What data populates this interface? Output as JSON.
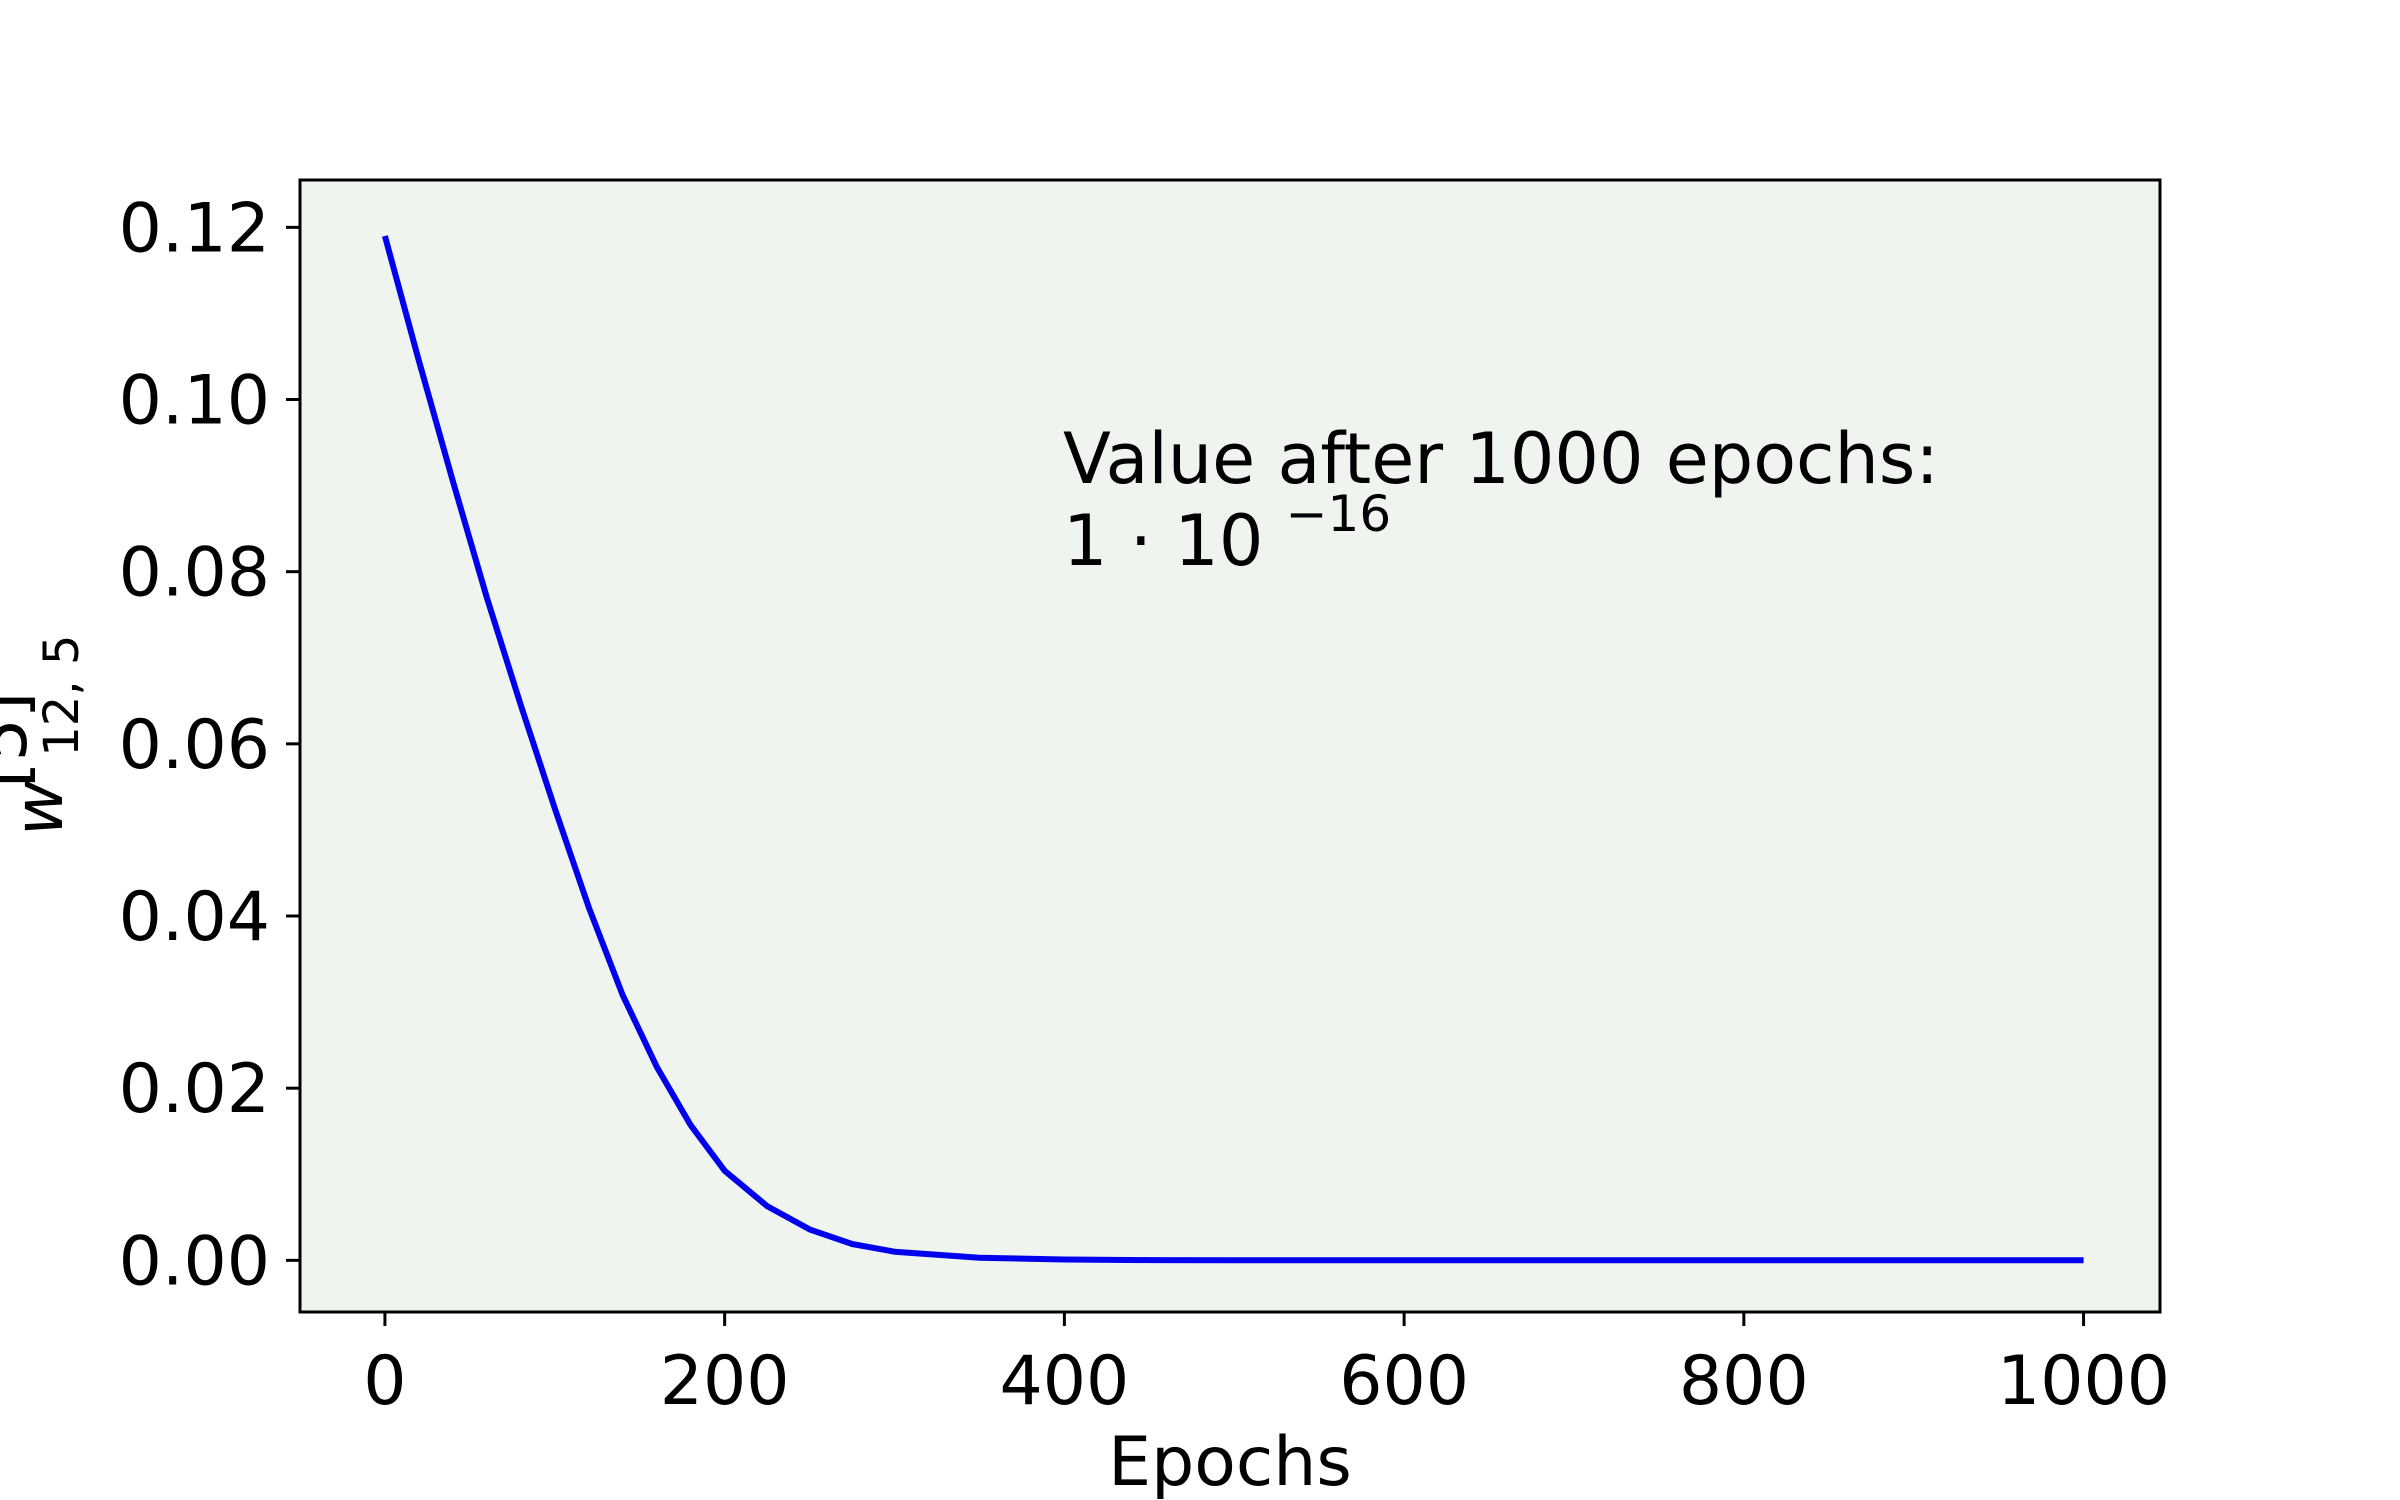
{
  "chart_data": {
    "type": "line",
    "title": "",
    "xlabel": "Epochs",
    "ylabel": {
      "base": "w",
      "superscript": "[5]",
      "subscript": "12, 5"
    },
    "xlim": [
      -50,
      1045
    ],
    "ylim": [
      -0.006,
      0.1255
    ],
    "xticks": [
      0,
      200,
      400,
      600,
      800,
      1000
    ],
    "xtick_labels": [
      "0",
      "200",
      "400",
      "600",
      "800",
      "1000"
    ],
    "yticks": [
      0.0,
      0.02,
      0.04,
      0.06,
      0.08,
      0.1,
      0.12
    ],
    "ytick_labels": [
      "0.00",
      "0.02",
      "0.04",
      "0.06",
      "0.08",
      "0.10",
      "0.12"
    ],
    "grid": false,
    "legend": "none",
    "colors": {
      "line": "#0000ee",
      "plot_background": "#eff4ef",
      "axes": "#000000"
    },
    "annotation": {
      "line1": "Value after 1000 epochs:",
      "line2_base": "1 · 10",
      "line2_exponent": "−16"
    },
    "series": [
      {
        "x": [
          0,
          20,
          40,
          60,
          80,
          100,
          120,
          140,
          160,
          180,
          200,
          225,
          250,
          275,
          300,
          350,
          400,
          450,
          500,
          600,
          700,
          800,
          900,
          1000
        ],
        "y": [
          0.119,
          0.1045,
          0.0905,
          0.077,
          0.0645,
          0.0525,
          0.041,
          0.0308,
          0.0225,
          0.0157,
          0.0104,
          0.0063,
          0.0036,
          0.0019,
          0.001,
          0.0003,
          0.0001,
          3e-05,
          1e-05,
          0.0,
          0.0,
          0.0,
          0.0,
          0.0
        ]
      }
    ]
  }
}
